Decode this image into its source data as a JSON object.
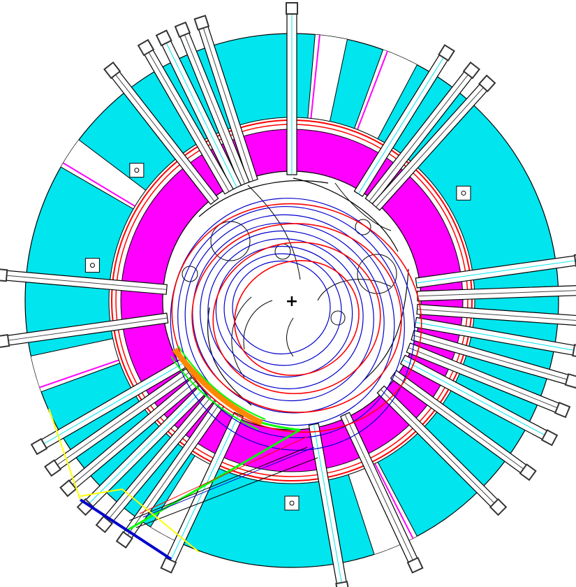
{
  "diagram": {
    "center_mark": "+",
    "colors": {
      "yoke": "#00e5ee",
      "coil": "#ff00ff",
      "beam_red": "#ff0000",
      "beam_blue": "#0000cc",
      "green": "#00ff00",
      "yellow": "#ffff00",
      "orange": "#ff8800",
      "outline": "#000000",
      "port_fill": "#ffffff",
      "gray": "#555555"
    },
    "icons": {
      "center": "crosshair-icon"
    }
  }
}
